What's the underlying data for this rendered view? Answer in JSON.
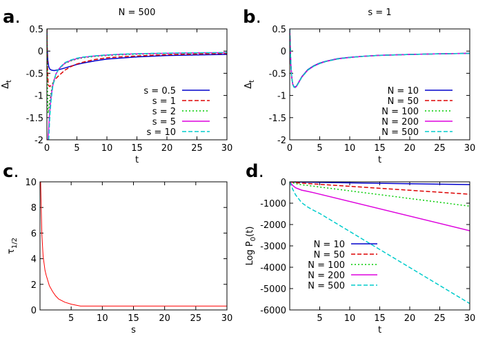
{
  "chart_data": [
    {
      "panel_label": "a",
      "type": "line",
      "title": "N = 500",
      "xlabel": "t",
      "ylabel": "Δ",
      "ylabel_sub": "t",
      "xlim": [
        0,
        30
      ],
      "ylim": [
        -2,
        0.5
      ],
      "x_ticks": [
        "0",
        "5",
        "10",
        "15",
        "20",
        "25",
        "30"
      ],
      "y_ticks": [
        "0.5",
        "0",
        "-0.5",
        "-1",
        "-1.5",
        "-2"
      ],
      "legend_position": "bottom-right",
      "series": [
        {
          "name": "s = 0.5",
          "color": "#0000cc",
          "dash": "solid",
          "x": [
            0,
            0.05,
            0.15,
            0.3,
            0.5,
            0.8,
            1.2,
            2,
            3,
            4,
            5,
            6,
            8,
            10,
            12,
            15,
            20,
            25,
            30
          ],
          "y": [
            0.5,
            0.1,
            -0.2,
            -0.35,
            -0.41,
            -0.43,
            -0.44,
            -0.42,
            -0.38,
            -0.34,
            -0.3,
            -0.27,
            -0.22,
            -0.18,
            -0.16,
            -0.13,
            -0.1,
            -0.085,
            -0.075
          ]
        },
        {
          "name": "s = 1",
          "color": "#dd0000",
          "dash": "dashed",
          "x": [
            0,
            0.05,
            0.1,
            0.2,
            0.3,
            0.5,
            0.8,
            1,
            1.5,
            2,
            3,
            4,
            5,
            6,
            8,
            10,
            12,
            15,
            20,
            25,
            30
          ],
          "y": [
            0.5,
            0,
            -0.4,
            -0.7,
            -0.78,
            -0.8,
            -0.75,
            -0.72,
            -0.62,
            -0.55,
            -0.43,
            -0.35,
            -0.29,
            -0.25,
            -0.19,
            -0.15,
            -0.13,
            -0.11,
            -0.08,
            -0.065,
            -0.055
          ]
        },
        {
          "name": "s = 2",
          "color": "#00cc00",
          "dash": "dotted",
          "x": [
            0,
            0.1,
            0.2,
            0.3,
            0.5,
            0.8,
            1,
            1.5,
            2,
            3,
            4,
            5,
            6,
            8,
            10,
            12,
            15,
            20,
            25,
            30
          ],
          "y": [
            0.5,
            -1.0,
            -1.4,
            -1.3,
            -1.1,
            -0.85,
            -0.72,
            -0.52,
            -0.4,
            -0.28,
            -0.22,
            -0.18,
            -0.15,
            -0.12,
            -0.1,
            -0.085,
            -0.07,
            -0.055,
            -0.045,
            -0.04
          ]
        },
        {
          "name": "s = 5",
          "color": "#dd00dd",
          "dash": "solid",
          "x": [
            0.2,
            0.4,
            0.6,
            0.8,
            1,
            1.5,
            2,
            3,
            4,
            5,
            6,
            8,
            10,
            12,
            15,
            20,
            25,
            30
          ],
          "y": [
            -2,
            -1.5,
            -1.15,
            -0.92,
            -0.76,
            -0.52,
            -0.4,
            -0.27,
            -0.21,
            -0.17,
            -0.14,
            -0.11,
            -0.09,
            -0.075,
            -0.06,
            -0.05,
            -0.04,
            -0.035
          ]
        },
        {
          "name": "s = 10",
          "color": "#00cccc",
          "dash": "dashed",
          "x": [
            0.3,
            0.5,
            0.7,
            1,
            1.5,
            2,
            3,
            4,
            5,
            6,
            8,
            10,
            12,
            15,
            20,
            25,
            30
          ],
          "y": [
            -2,
            -1.45,
            -1.1,
            -0.78,
            -0.52,
            -0.39,
            -0.26,
            -0.2,
            -0.16,
            -0.135,
            -0.105,
            -0.085,
            -0.07,
            -0.058,
            -0.045,
            -0.037,
            -0.032
          ]
        }
      ]
    },
    {
      "panel_label": "b",
      "type": "line",
      "title": "s = 1",
      "xlabel": "t",
      "ylabel": "Δ",
      "ylabel_sub": "t",
      "xlim": [
        0,
        30
      ],
      "ylim": [
        -2,
        0.5
      ],
      "x_ticks": [
        "0",
        "5",
        "10",
        "15",
        "20",
        "25",
        "30"
      ],
      "y_ticks": [
        "0.5",
        "0",
        "-0.5",
        "-1",
        "-1.5",
        "-2"
      ],
      "legend_position": "bottom-right",
      "series": [
        {
          "name": "N = 10",
          "color": "#0000cc",
          "dash": "solid",
          "x": [
            0,
            0.1,
            0.2,
            0.35,
            0.5,
            0.7,
            0.9,
            1.1,
            1.5,
            2,
            3,
            4,
            5,
            6,
            8,
            10,
            12,
            15,
            20,
            25,
            30
          ],
          "y": [
            0.5,
            0.05,
            -0.3,
            -0.6,
            -0.74,
            -0.8,
            -0.81,
            -0.79,
            -0.7,
            -0.58,
            -0.42,
            -0.33,
            -0.27,
            -0.23,
            -0.17,
            -0.14,
            -0.12,
            -0.095,
            -0.075,
            -0.06,
            -0.05
          ]
        },
        {
          "name": "N = 50",
          "color": "#dd0000",
          "dash": "dashed",
          "x": [
            0,
            0.1,
            0.2,
            0.35,
            0.5,
            0.7,
            0.9,
            1.1,
            1.5,
            2,
            3,
            4,
            5,
            6,
            8,
            10,
            12,
            15,
            20,
            25,
            30
          ],
          "y": [
            0.5,
            0.04,
            -0.31,
            -0.61,
            -0.75,
            -0.81,
            -0.82,
            -0.8,
            -0.71,
            -0.59,
            -0.43,
            -0.34,
            -0.28,
            -0.235,
            -0.175,
            -0.145,
            -0.12,
            -0.097,
            -0.076,
            -0.061,
            -0.051
          ]
        },
        {
          "name": "N = 100",
          "color": "#00cc00",
          "dash": "dotted",
          "x": [
            0,
            0.1,
            0.2,
            0.35,
            0.5,
            0.7,
            0.9,
            1.1,
            1.5,
            2,
            3,
            4,
            5,
            6,
            8,
            10,
            12,
            15,
            20,
            25,
            30
          ],
          "y": [
            0.5,
            0.04,
            -0.31,
            -0.61,
            -0.75,
            -0.81,
            -0.82,
            -0.8,
            -0.71,
            -0.59,
            -0.43,
            -0.34,
            -0.28,
            -0.235,
            -0.175,
            -0.145,
            -0.12,
            -0.097,
            -0.076,
            -0.061,
            -0.051
          ]
        },
        {
          "name": "N = 200",
          "color": "#dd00dd",
          "dash": "solid",
          "x": [
            0,
            0.1,
            0.2,
            0.35,
            0.5,
            0.7,
            0.9,
            1.1,
            1.5,
            2,
            3,
            4,
            5,
            6,
            8,
            10,
            12,
            15,
            20,
            25,
            30
          ],
          "y": [
            0.5,
            0.04,
            -0.31,
            -0.61,
            -0.75,
            -0.81,
            -0.82,
            -0.8,
            -0.71,
            -0.59,
            -0.43,
            -0.34,
            -0.28,
            -0.235,
            -0.175,
            -0.145,
            -0.12,
            -0.097,
            -0.076,
            -0.061,
            -0.051
          ]
        },
        {
          "name": "N = 500",
          "color": "#00cccc",
          "dash": "dashed",
          "x": [
            0,
            0.1,
            0.2,
            0.35,
            0.5,
            0.7,
            0.9,
            1.1,
            1.5,
            2,
            3,
            4,
            5,
            6,
            8,
            10,
            12,
            15,
            20,
            25,
            30
          ],
          "y": [
            0.5,
            0.04,
            -0.31,
            -0.61,
            -0.75,
            -0.81,
            -0.82,
            -0.8,
            -0.71,
            -0.59,
            -0.43,
            -0.34,
            -0.28,
            -0.235,
            -0.175,
            -0.145,
            -0.12,
            -0.097,
            -0.076,
            -0.061,
            -0.051
          ]
        }
      ]
    },
    {
      "panel_label": "c",
      "type": "line",
      "title": "",
      "xlabel": "s",
      "ylabel": "τ",
      "ylabel_sub": "1/2",
      "xlim": [
        0,
        30
      ],
      "ylim": [
        0,
        10
      ],
      "x_ticks": [
        "5",
        "10",
        "15",
        "20",
        "25",
        "30"
      ],
      "x_tick_values": [
        5,
        10,
        15,
        20,
        25,
        30
      ],
      "y_ticks": [
        "10",
        "8",
        "6",
        "4",
        "2",
        "0"
      ],
      "series": [
        {
          "name": "",
          "color": "#ff0000",
          "dash": "solid",
          "x": [
            0.1,
            0.2,
            0.3,
            0.5,
            0.8,
            1,
            1.5,
            2,
            2.5,
            3,
            4,
            5,
            6,
            6.5,
            8,
            10,
            15,
            20,
            25,
            30
          ],
          "y": [
            10,
            7.8,
            5.9,
            4.2,
            3.1,
            2.7,
            1.9,
            1.45,
            1.1,
            0.85,
            0.6,
            0.45,
            0.35,
            0.3,
            0.3,
            0.3,
            0.3,
            0.3,
            0.3,
            0.3
          ]
        }
      ]
    },
    {
      "panel_label": "d",
      "type": "line",
      "title": "",
      "xlabel": "t",
      "ylabel": "Log P",
      "ylabel_sub": "0",
      "ylabel_suffix": "(t)",
      "xlim": [
        0,
        30
      ],
      "ylim": [
        -6000,
        0
      ],
      "x_ticks": [
        "5",
        "10",
        "15",
        "20",
        "25",
        "30"
      ],
      "x_tick_values": [
        5,
        10,
        15,
        20,
        25,
        30
      ],
      "y_ticks": [
        "0",
        "-1000",
        "-2000",
        "-3000",
        "-4000",
        "-5000",
        "-6000"
      ],
      "legend_position": "bottom-left",
      "series": [
        {
          "name": "N = 10",
          "color": "#0000cc",
          "dash": "solid",
          "x": [
            0,
            1,
            30
          ],
          "y": [
            0,
            -10,
            -130
          ]
        },
        {
          "name": "N = 50",
          "color": "#dd0000",
          "dash": "dashed",
          "x": [
            0,
            1,
            2,
            30
          ],
          "y": [
            0,
            -40,
            -60,
            -580
          ]
        },
        {
          "name": "N = 100",
          "color": "#00cc00",
          "dash": "dotted",
          "x": [
            0,
            1,
            2,
            3,
            30
          ],
          "y": [
            0,
            -90,
            -140,
            -170,
            -1140
          ]
        },
        {
          "name": "N = 200",
          "color": "#dd00dd",
          "dash": "solid",
          "x": [
            0,
            0.5,
            1,
            2,
            3,
            4,
            30
          ],
          "y": [
            0,
            -170,
            -280,
            -390,
            -450,
            -510,
            -2290
          ]
        },
        {
          "name": "N = 500",
          "color": "#00cccc",
          "dash": "dashed",
          "x": [
            0,
            0.5,
            1,
            1.5,
            2,
            3,
            4,
            5,
            30
          ],
          "y": [
            0,
            -350,
            -620,
            -800,
            -980,
            -1180,
            -1340,
            -1480,
            -5700
          ]
        }
      ]
    }
  ]
}
